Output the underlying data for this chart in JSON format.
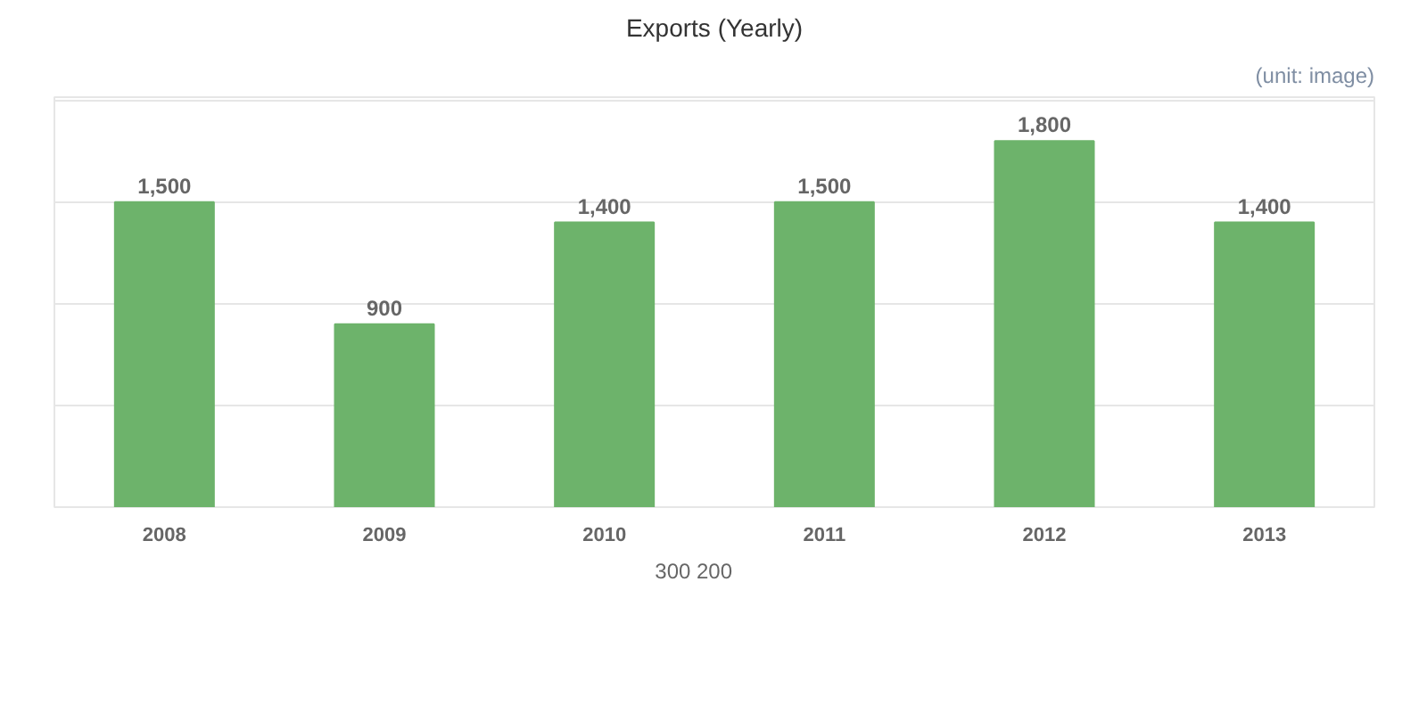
{
  "chart_data": {
    "type": "bar",
    "title": "Exports (Yearly)",
    "annotations": [
      "(unit: image)",
      "300",
      "200"
    ],
    "categories": [
      "2008",
      "2009",
      "2010",
      "2011",
      "2012",
      "2013"
    ],
    "values": [
      1500,
      900,
      1400,
      1500,
      1800,
      1400
    ],
    "color": "#6db36b",
    "value_labels": [
      "1,500",
      "900",
      "1,400",
      "1,500",
      "1,800",
      "1,400"
    ],
    "grid": "y"
  }
}
